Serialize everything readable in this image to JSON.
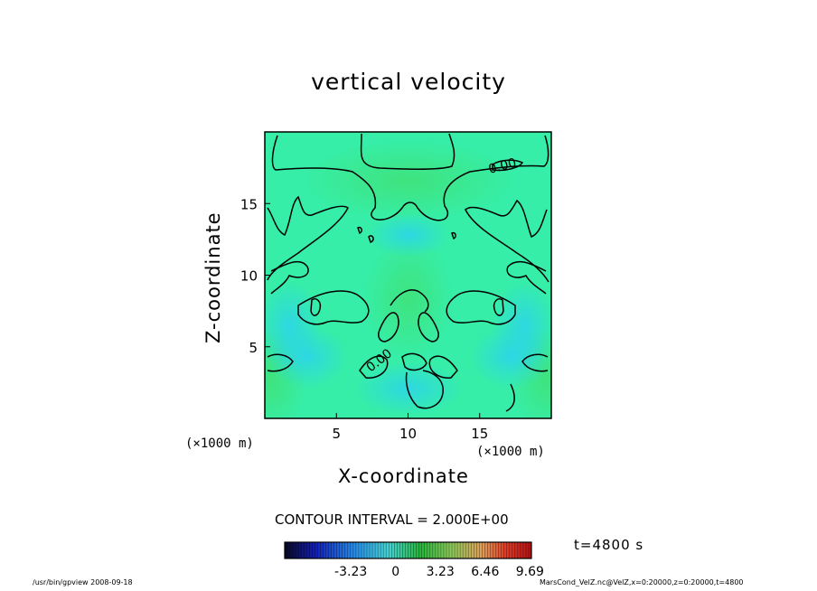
{
  "chart_data": {
    "type": "heatmap",
    "title": "vertical velocity",
    "xlabel": "X-coordinate",
    "ylabel": "Z-coordinate",
    "x_unit": "(×1000 m)",
    "z_unit": "(×1000 m)",
    "xlim": [
      0,
      20
    ],
    "ylim": [
      0,
      20
    ],
    "x_ticks": [
      "5",
      "10",
      "15"
    ],
    "y_ticks": [
      "5",
      "10",
      "15"
    ],
    "contour_labels": [
      "0.00",
      "0.00"
    ],
    "contour_interval": "CONTOUR INTERVAL = 2.000E+00",
    "colorbar": {
      "ticks": [
        "-3.23",
        "0",
        "3.23",
        "6.46",
        "9.69"
      ],
      "tick_values": [
        -3.23,
        0,
        3.23,
        6.46,
        9.69
      ],
      "range": [
        -8.0,
        9.8
      ]
    },
    "time_label": "t=4800 s",
    "colors": {
      "field_base": "#33f0a6",
      "field_low": "#2fd7f0",
      "field_high": "#45e05a",
      "contour": "#000000"
    }
  },
  "footer": {
    "left": "/usr/bin/gpview   2008-09-18",
    "right": "MarsCond_VelZ.nc@VelZ,x=0:20000,z=0:20000,t=4800"
  }
}
